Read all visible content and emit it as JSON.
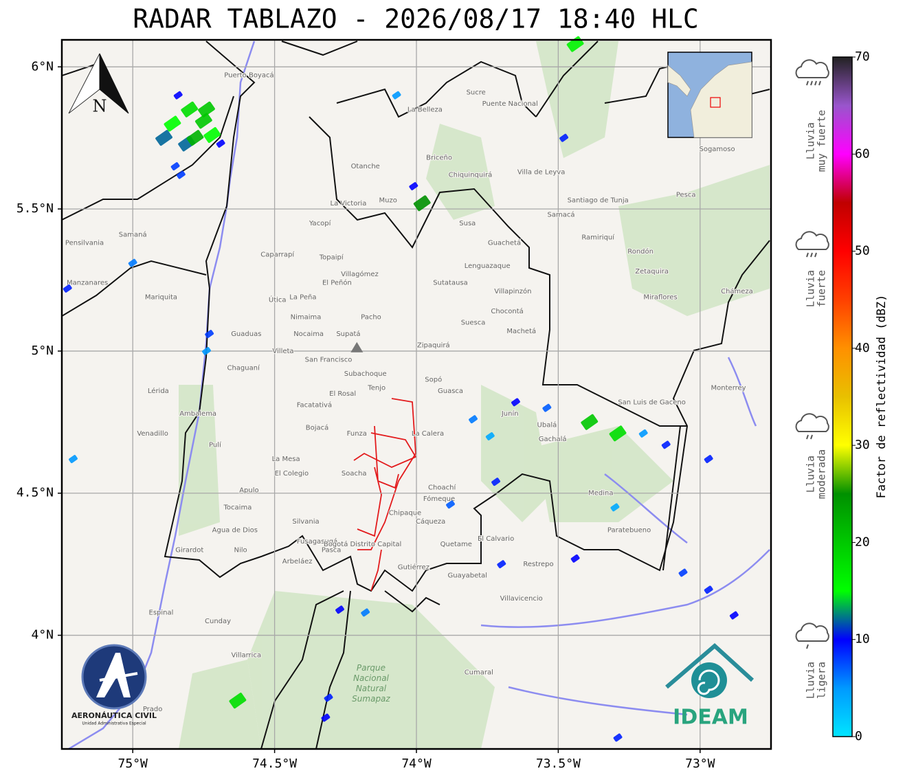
{
  "title": "RADAR TABLAZO - 2026/08/17 18:40 HLC",
  "map": {
    "xlim": [
      -75.25,
      -72.75
    ],
    "ylim": [
      3.6,
      6.095
    ],
    "grid": true,
    "xticks": [
      {
        "value": -75,
        "label": "75°W"
      },
      {
        "value": -74.5,
        "label": "74.5°W"
      },
      {
        "value": -74,
        "label": "74°W"
      },
      {
        "value": -73.5,
        "label": "73.5°W"
      },
      {
        "value": -73,
        "label": "73°W"
      }
    ],
    "yticks": [
      {
        "value": 4,
        "label": "4°N"
      },
      {
        "value": 4.5,
        "label": "4.5°N"
      },
      {
        "value": 5,
        "label": "5°N"
      },
      {
        "value": 5.5,
        "label": "5.5°N"
      },
      {
        "value": 6,
        "label": "6°N"
      }
    ],
    "north_label": "N",
    "radar_site": {
      "lon": -74.21,
      "lat": 5.01
    },
    "park": {
      "lines": [
        "Parque",
        "Nacional",
        "Natural",
        "Sumapaz"
      ],
      "lon": -74.16,
      "lat": 3.83
    },
    "places": [
      {
        "name": "Puerto Boyacá",
        "lon": -74.59,
        "lat": 5.97
      },
      {
        "name": "Otanche",
        "lon": -74.18,
        "lat": 5.65
      },
      {
        "name": "Yacopí",
        "lon": -74.34,
        "lat": 5.45
      },
      {
        "name": "Caparrapí",
        "lon": -74.49,
        "lat": 5.34
      },
      {
        "name": "Topaipí",
        "lon": -74.3,
        "lat": 5.33
      },
      {
        "name": "El Peñón",
        "lon": -74.28,
        "lat": 5.24
      },
      {
        "name": "Villagómez",
        "lon": -74.2,
        "lat": 5.27
      },
      {
        "name": "Útica",
        "lon": -74.49,
        "lat": 5.18
      },
      {
        "name": "La Peña",
        "lon": -74.4,
        "lat": 5.19
      },
      {
        "name": "Pacho",
        "lon": -74.16,
        "lat": 5.12
      },
      {
        "name": "Nimaima",
        "lon": -74.39,
        "lat": 5.12
      },
      {
        "name": "Nocaima",
        "lon": -74.38,
        "lat": 5.06
      },
      {
        "name": "Guaduas",
        "lon": -74.6,
        "lat": 5.06
      },
      {
        "name": "Villeta",
        "lon": -74.47,
        "lat": 5.0
      },
      {
        "name": "Supatá",
        "lon": -74.24,
        "lat": 5.06
      },
      {
        "name": "San Francisco",
        "lon": -74.31,
        "lat": 4.97
      },
      {
        "name": "Chaguaní",
        "lon": -74.61,
        "lat": 4.94
      },
      {
        "name": "Subachoque",
        "lon": -74.18,
        "lat": 4.92
      },
      {
        "name": "Tenjo",
        "lon": -74.14,
        "lat": 4.87
      },
      {
        "name": "El Rosal",
        "lon": -74.26,
        "lat": 4.85
      },
      {
        "name": "Facatativá",
        "lon": -74.36,
        "lat": 4.81
      },
      {
        "name": "Bojacá",
        "lon": -74.35,
        "lat": 4.73
      },
      {
        "name": "Funza",
        "lon": -74.21,
        "lat": 4.71
      },
      {
        "name": "La Mesa",
        "lon": -74.46,
        "lat": 4.62
      },
      {
        "name": "El Colegio",
        "lon": -74.44,
        "lat": 4.57
      },
      {
        "name": "Soacha",
        "lon": -74.22,
        "lat": 4.57
      },
      {
        "name": "Apulo",
        "lon": -74.59,
        "lat": 4.51
      },
      {
        "name": "Tocaima",
        "lon": -74.63,
        "lat": 4.45
      },
      {
        "name": "Agua de Dios",
        "lon": -74.64,
        "lat": 4.37
      },
      {
        "name": "Silvania",
        "lon": -74.39,
        "lat": 4.4
      },
      {
        "name": "Nilo",
        "lon": -74.62,
        "lat": 4.3
      },
      {
        "name": "Arbeláez",
        "lon": -74.42,
        "lat": 4.26
      },
      {
        "name": "Fusagasugá",
        "lon": -74.35,
        "lat": 4.33
      },
      {
        "name": "Pasca",
        "lon": -74.3,
        "lat": 4.3
      },
      {
        "name": "Girardot",
        "lon": -74.8,
        "lat": 4.3
      },
      {
        "name": "Chipaque",
        "lon": -74.04,
        "lat": 4.43
      },
      {
        "name": "Cáqueza",
        "lon": -73.95,
        "lat": 4.4
      },
      {
        "name": "Choachí",
        "lon": -73.91,
        "lat": 4.52
      },
      {
        "name": "Fómeque",
        "lon": -73.92,
        "lat": 4.48
      },
      {
        "name": "Quetame",
        "lon": -73.86,
        "lat": 4.32
      },
      {
        "name": "Gutiérrez",
        "lon": -74.01,
        "lat": 4.24
      },
      {
        "name": "Guayabetal",
        "lon": -73.82,
        "lat": 4.21
      },
      {
        "name": "El Calvario",
        "lon": -73.72,
        "lat": 4.34
      },
      {
        "name": "Restrepo",
        "lon": -73.57,
        "lat": 4.25
      },
      {
        "name": "Villavicencio",
        "lon": -73.63,
        "lat": 4.13
      },
      {
        "name": "Cumaral",
        "lon": -73.78,
        "lat": 3.87
      },
      {
        "name": "Medina",
        "lon": -73.35,
        "lat": 4.5
      },
      {
        "name": "Paratebueno",
        "lon": -73.25,
        "lat": 4.37
      },
      {
        "name": "Ubalá",
        "lon": -73.54,
        "lat": 4.74
      },
      {
        "name": "Gachalá",
        "lon": -73.52,
        "lat": 4.69
      },
      {
        "name": "Junín",
        "lon": -73.67,
        "lat": 4.78
      },
      {
        "name": "La Calera",
        "lon": -73.96,
        "lat": 4.71
      },
      {
        "name": "Guasca",
        "lon": -73.88,
        "lat": 4.86
      },
      {
        "name": "Sopó",
        "lon": -73.94,
        "lat": 4.9
      },
      {
        "name": "Zipaquirá",
        "lon": -73.94,
        "lat": 5.02
      },
      {
        "name": "Suesca",
        "lon": -73.8,
        "lat": 5.1
      },
      {
        "name": "Chocontá",
        "lon": -73.68,
        "lat": 5.14
      },
      {
        "name": "Machetá",
        "lon": -73.63,
        "lat": 5.07
      },
      {
        "name": "Villapinzón",
        "lon": -73.66,
        "lat": 5.21
      },
      {
        "name": "Sutatausa",
        "lon": -73.88,
        "lat": 5.24
      },
      {
        "name": "Lenguazaque",
        "lon": -73.75,
        "lat": 5.3
      },
      {
        "name": "Guachetá",
        "lon": -73.69,
        "lat": 5.38
      },
      {
        "name": "Susa",
        "lon": -73.82,
        "lat": 5.45
      },
      {
        "name": "Muzo",
        "lon": -74.1,
        "lat": 5.53
      },
      {
        "name": "La Victoria",
        "lon": -74.24,
        "lat": 5.52
      },
      {
        "name": "Chiquinquirá",
        "lon": -73.81,
        "lat": 5.62
      },
      {
        "name": "Villa de Leyva",
        "lon": -73.56,
        "lat": 5.63
      },
      {
        "name": "Samacá",
        "lon": -73.49,
        "lat": 5.48
      },
      {
        "name": "Santiago de Tunja",
        "lon": -73.36,
        "lat": 5.53
      },
      {
        "name": "Ramiriquí",
        "lon": -73.36,
        "lat": 5.4
      },
      {
        "name": "Rondón",
        "lon": -73.21,
        "lat": 5.35
      },
      {
        "name": "Zetaquira",
        "lon": -73.17,
        "lat": 5.28
      },
      {
        "name": "Miraflores",
        "lon": -73.14,
        "lat": 5.19
      },
      {
        "name": "Pesca",
        "lon": -73.05,
        "lat": 5.55
      },
      {
        "name": "Sogamoso",
        "lon": -72.94,
        "lat": 5.71
      },
      {
        "name": "Chámeza",
        "lon": -72.87,
        "lat": 5.21
      },
      {
        "name": "Monterrey",
        "lon": -72.9,
        "lat": 4.87
      },
      {
        "name": "San Luis de Gaceno",
        "lon": -73.17,
        "lat": 4.82
      },
      {
        "name": "Puente Nacional",
        "lon": -73.67,
        "lat": 5.87
      },
      {
        "name": "Sucre",
        "lon": -73.79,
        "lat": 5.91
      },
      {
        "name": "La Belleza",
        "lon": -73.97,
        "lat": 5.85
      },
      {
        "name": "Briceño",
        "lon": -73.92,
        "lat": 5.68
      },
      {
        "name": "Samaná",
        "lon": -75.0,
        "lat": 5.41
      },
      {
        "name": "Pensilvania",
        "lon": -75.17,
        "lat": 5.38
      },
      {
        "name": "Manzanares",
        "lon": -75.16,
        "lat": 5.24
      },
      {
        "name": "Mariquita",
        "lon": -74.9,
        "lat": 5.19
      },
      {
        "name": "Lérida",
        "lon": -74.91,
        "lat": 4.86
      },
      {
        "name": "Venadillo",
        "lon": -74.93,
        "lat": 4.71
      },
      {
        "name": "Ambalema",
        "lon": -74.77,
        "lat": 4.78
      },
      {
        "name": "Pulí",
        "lon": -74.71,
        "lat": 4.67
      },
      {
        "name": "Espinal",
        "lon": -74.9,
        "lat": 4.08
      },
      {
        "name": "Cunday",
        "lon": -74.7,
        "lat": 4.05
      },
      {
        "name": "Villarrica",
        "lon": -74.6,
        "lat": 3.93
      },
      {
        "name": "Prado",
        "lon": -74.93,
        "lat": 3.74
      },
      {
        "name": "Bogotá Distrito Capital",
        "lon": -74.19,
        "lat": 4.32
      }
    ],
    "echoes": [
      {
        "lon": -74.84,
        "lat": 5.9,
        "dbz": 10
      },
      {
        "lon": -74.8,
        "lat": 5.85,
        "dbz": 18
      },
      {
        "lon": -74.86,
        "lat": 5.8,
        "dbz": 15
      },
      {
        "lon": -74.75,
        "lat": 5.81,
        "dbz": 20
      },
      {
        "lon": -74.72,
        "lat": 5.76,
        "dbz": 15
      },
      {
        "lon": -74.81,
        "lat": 5.73,
        "dbz": 12
      },
      {
        "lon": -74.85,
        "lat": 5.65,
        "dbz": 8
      },
      {
        "lon": -74.69,
        "lat": 5.73,
        "dbz": 10
      },
      {
        "lon": -74.83,
        "lat": 5.62,
        "dbz": 8
      },
      {
        "lon": -74.74,
        "lat": 5.85,
        "dbz": 20
      },
      {
        "lon": -74.78,
        "lat": 5.75,
        "dbz": 22
      },
      {
        "lon": -74.89,
        "lat": 5.75,
        "dbz": 12
      },
      {
        "lon": -74.73,
        "lat": 5.06,
        "dbz": 8
      },
      {
        "lon": -74.74,
        "lat": 5.0,
        "dbz": 5
      },
      {
        "lon": -74.01,
        "lat": 5.58,
        "dbz": 10
      },
      {
        "lon": -73.98,
        "lat": 5.52,
        "dbz": 25
      },
      {
        "lon": -74.07,
        "lat": 5.9,
        "dbz": 5
      },
      {
        "lon": -73.48,
        "lat": 5.75,
        "dbz": 9
      },
      {
        "lon": -73.44,
        "lat": 6.08,
        "dbz": 16
      },
      {
        "lon": -73.88,
        "lat": 4.46,
        "dbz": 7
      },
      {
        "lon": -73.65,
        "lat": 4.82,
        "dbz": 10
      },
      {
        "lon": -73.74,
        "lat": 4.7,
        "dbz": 4
      },
      {
        "lon": -73.72,
        "lat": 4.54,
        "dbz": 9
      },
      {
        "lon": -73.12,
        "lat": 4.67,
        "dbz": 9
      },
      {
        "lon": -73.39,
        "lat": 4.75,
        "dbz": 20
      },
      {
        "lon": -73.29,
        "lat": 4.71,
        "dbz": 18
      },
      {
        "lon": -73.2,
        "lat": 4.71,
        "dbz": 5
      },
      {
        "lon": -73.3,
        "lat": 4.45,
        "dbz": 4
      },
      {
        "lon": -72.97,
        "lat": 4.62,
        "dbz": 9
      },
      {
        "lon": -73.06,
        "lat": 4.22,
        "dbz": 8
      },
      {
        "lon": -72.97,
        "lat": 4.16,
        "dbz": 9
      },
      {
        "lon": -72.88,
        "lat": 4.07,
        "dbz": 10
      },
      {
        "lon": -74.18,
        "lat": 4.08,
        "dbz": 6
      },
      {
        "lon": -74.27,
        "lat": 4.09,
        "dbz": 10
      },
      {
        "lon": -74.31,
        "lat": 3.78,
        "dbz": 9
      },
      {
        "lon": -74.32,
        "lat": 3.71,
        "dbz": 10
      },
      {
        "lon": -74.63,
        "lat": 3.77,
        "dbz": 18
      },
      {
        "lon": -73.29,
        "lat": 3.64,
        "dbz": 9
      },
      {
        "lon": -75.21,
        "lat": 4.62,
        "dbz": 5
      },
      {
        "lon": -75.0,
        "lat": 5.31,
        "dbz": 6
      },
      {
        "lon": -75.23,
        "lat": 5.22,
        "dbz": 9
      },
      {
        "lon": -73.44,
        "lat": 4.27,
        "dbz": 10
      },
      {
        "lon": -73.7,
        "lat": 4.25,
        "dbz": 9
      },
      {
        "lon": -73.54,
        "lat": 4.8,
        "dbz": 7
      },
      {
        "lon": -73.8,
        "lat": 4.76,
        "dbz": 6
      }
    ]
  },
  "colorbar": {
    "label": "Factor de reflectividad (dBZ)",
    "lim": [
      0,
      70
    ],
    "ticks": [
      0,
      10,
      20,
      30,
      40,
      50,
      60,
      70
    ],
    "colors": [
      "#00e5ff",
      "#0099ff",
      "#0000ff",
      "#00ff00",
      "#00c800",
      "#009000",
      "#ffff00",
      "#e8c000",
      "#ff9000",
      "#ff4000",
      "#ff0000",
      "#c00000",
      "#ff00ff",
      "#9955cc",
      "#222222"
    ]
  },
  "legend": [
    {
      "lines": [
        "Lluvia",
        "muy fuerte"
      ]
    },
    {
      "lines": [
        "Lluvia",
        "fuerte"
      ]
    },
    {
      "lines": [
        "Lluvia",
        "moderada"
      ]
    },
    {
      "lines": [
        "Lluvia",
        "ligera"
      ]
    }
  ],
  "logos": {
    "aero": "AERONÁUTICA CIVIL",
    "aero_sub": "Unidad Administrativa Especial",
    "ideam": "IDEAM"
  }
}
